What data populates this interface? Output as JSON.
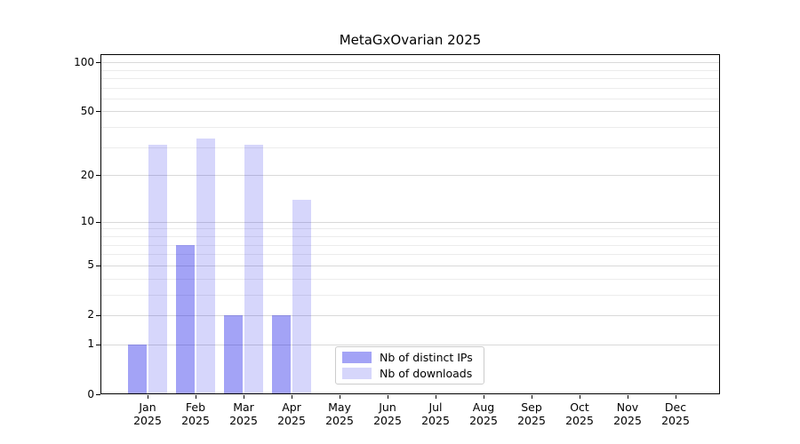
{
  "chart_data": {
    "type": "bar",
    "title": "MetaGxOvarian 2025",
    "x_year": "2025",
    "months": [
      "Jan",
      "Feb",
      "Mar",
      "Apr",
      "May",
      "Jun",
      "Jul",
      "Aug",
      "Sep",
      "Oct",
      "Nov",
      "Dec"
    ],
    "categories": [
      "Jan 2025",
      "Feb 2025",
      "Mar 2025",
      "Apr 2025",
      "May 2025",
      "Jun 2025",
      "Jul 2025",
      "Aug 2025",
      "Sep 2025",
      "Oct 2025",
      "Nov 2025",
      "Dec 2025"
    ],
    "series": [
      {
        "name": "Nb of distinct IPs",
        "color": "#a3a3f6",
        "fill": "rgba(0,0,230,0.36)",
        "values": [
          1,
          7,
          2,
          2,
          0,
          0,
          0,
          0,
          0,
          0,
          0,
          0
        ]
      },
      {
        "name": "Nb of downloads",
        "color": "#d6d6fb",
        "fill": "rgba(0,0,230,0.16)",
        "values": [
          31,
          34,
          31,
          14,
          0,
          0,
          0,
          0,
          0,
          0,
          0,
          0
        ]
      }
    ],
    "y_scale": "log1p",
    "y_ticks": [
      0,
      1,
      2,
      5,
      10,
      20,
      50,
      100
    ],
    "y_minor_grid": [
      3,
      4,
      6,
      7,
      8,
      9,
      30,
      40,
      60,
      70,
      80,
      90
    ],
    "ylim": [
      0,
      112
    ],
    "xlabel": "",
    "ylabel": "",
    "grid": true,
    "legend_position": "lower center"
  }
}
